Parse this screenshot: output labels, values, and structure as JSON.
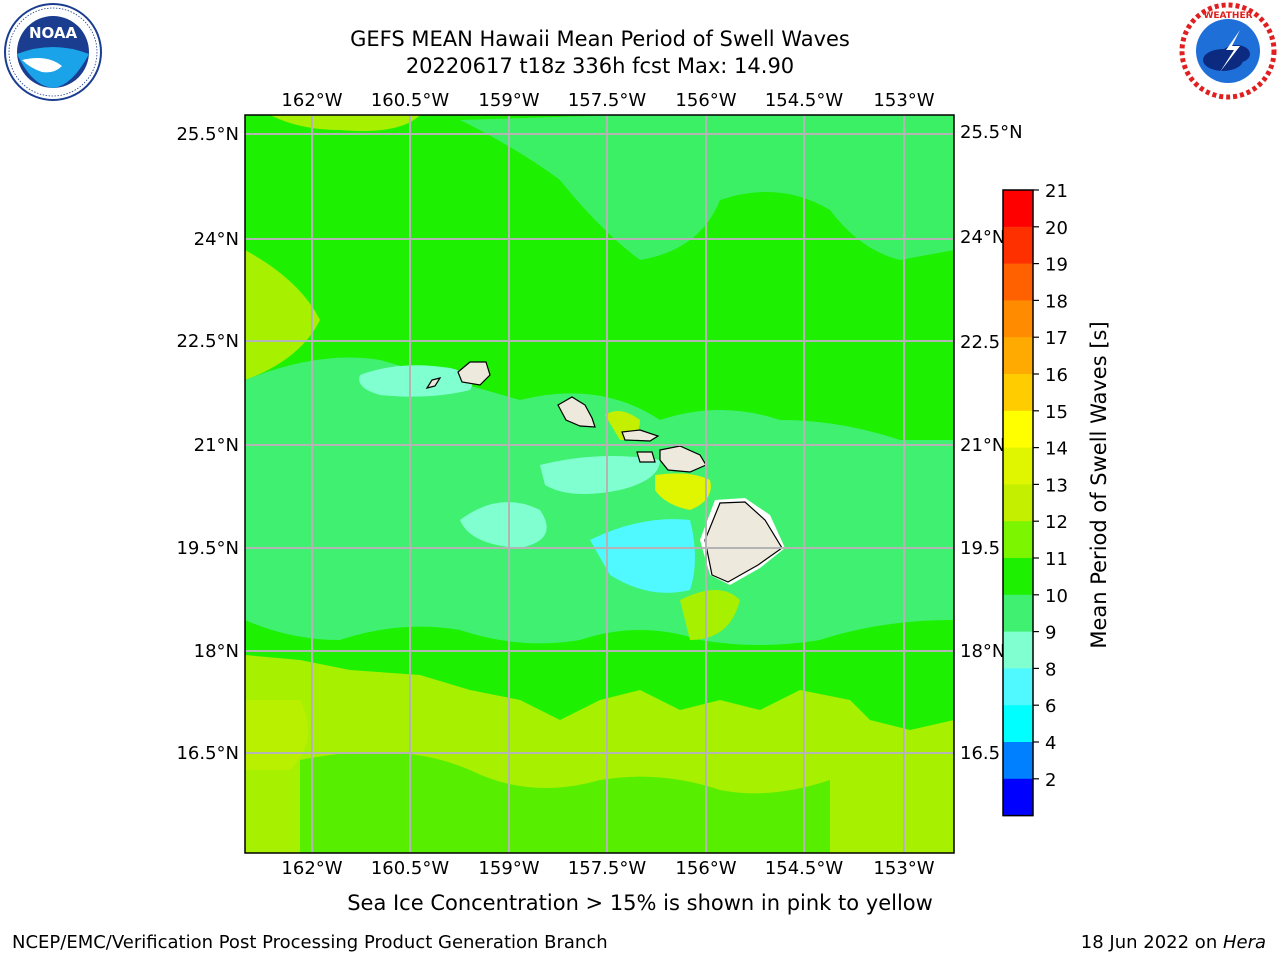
{
  "title_line1": "GEFS MEAN Hawaii Mean Period of Swell Waves",
  "title_line2": "20220617 t18z 336h fcst   Max: 14.90",
  "note": "Sea Ice Concentration > 15% is shown in pink to yellow",
  "footer_left": "NCEP/EMC/Verification Post Processing Product Generation Branch",
  "footer_date": "18 Jun 2022 on ",
  "footer_machine": "Hera",
  "logos": {
    "left": "noaa-logo",
    "right": "nws-logo"
  },
  "colorbar": {
    "label": "Mean Period of Swell Waves [s]",
    "ticks": [
      "21",
      "20",
      "19",
      "18",
      "17",
      "16",
      "15",
      "14",
      "13",
      "12",
      "11",
      "10",
      "9",
      "8",
      "6",
      "4",
      "2"
    ],
    "colors": [
      "#ff0000",
      "#ff3000",
      "#ff6000",
      "#ff8c00",
      "#ffaa00",
      "#ffcc00",
      "#ffff00",
      "#e0f500",
      "#c4f000",
      "#7cf500",
      "#1df000",
      "#40f070",
      "#80ffd0",
      "#50f8ff",
      "#00ffff",
      "#0080ff",
      "#0000ff"
    ]
  },
  "map": {
    "lon_labels": [
      "162°W",
      "160.5°W",
      "159°W",
      "157.5°W",
      "156°W",
      "154.5°W",
      "153°W"
    ],
    "lat_labels": [
      "25.5°N",
      "24°N",
      "22.5°N",
      "21°N",
      "19.5°N",
      "18°N",
      "16.5°N"
    ],
    "lat_labels_right": [
      "25.5°N",
      "24°N",
      "22.5",
      "21°N",
      "19.5",
      "18°N",
      "16.5"
    ],
    "background_color": "#1df000",
    "land_color": "#ede9dc"
  }
}
